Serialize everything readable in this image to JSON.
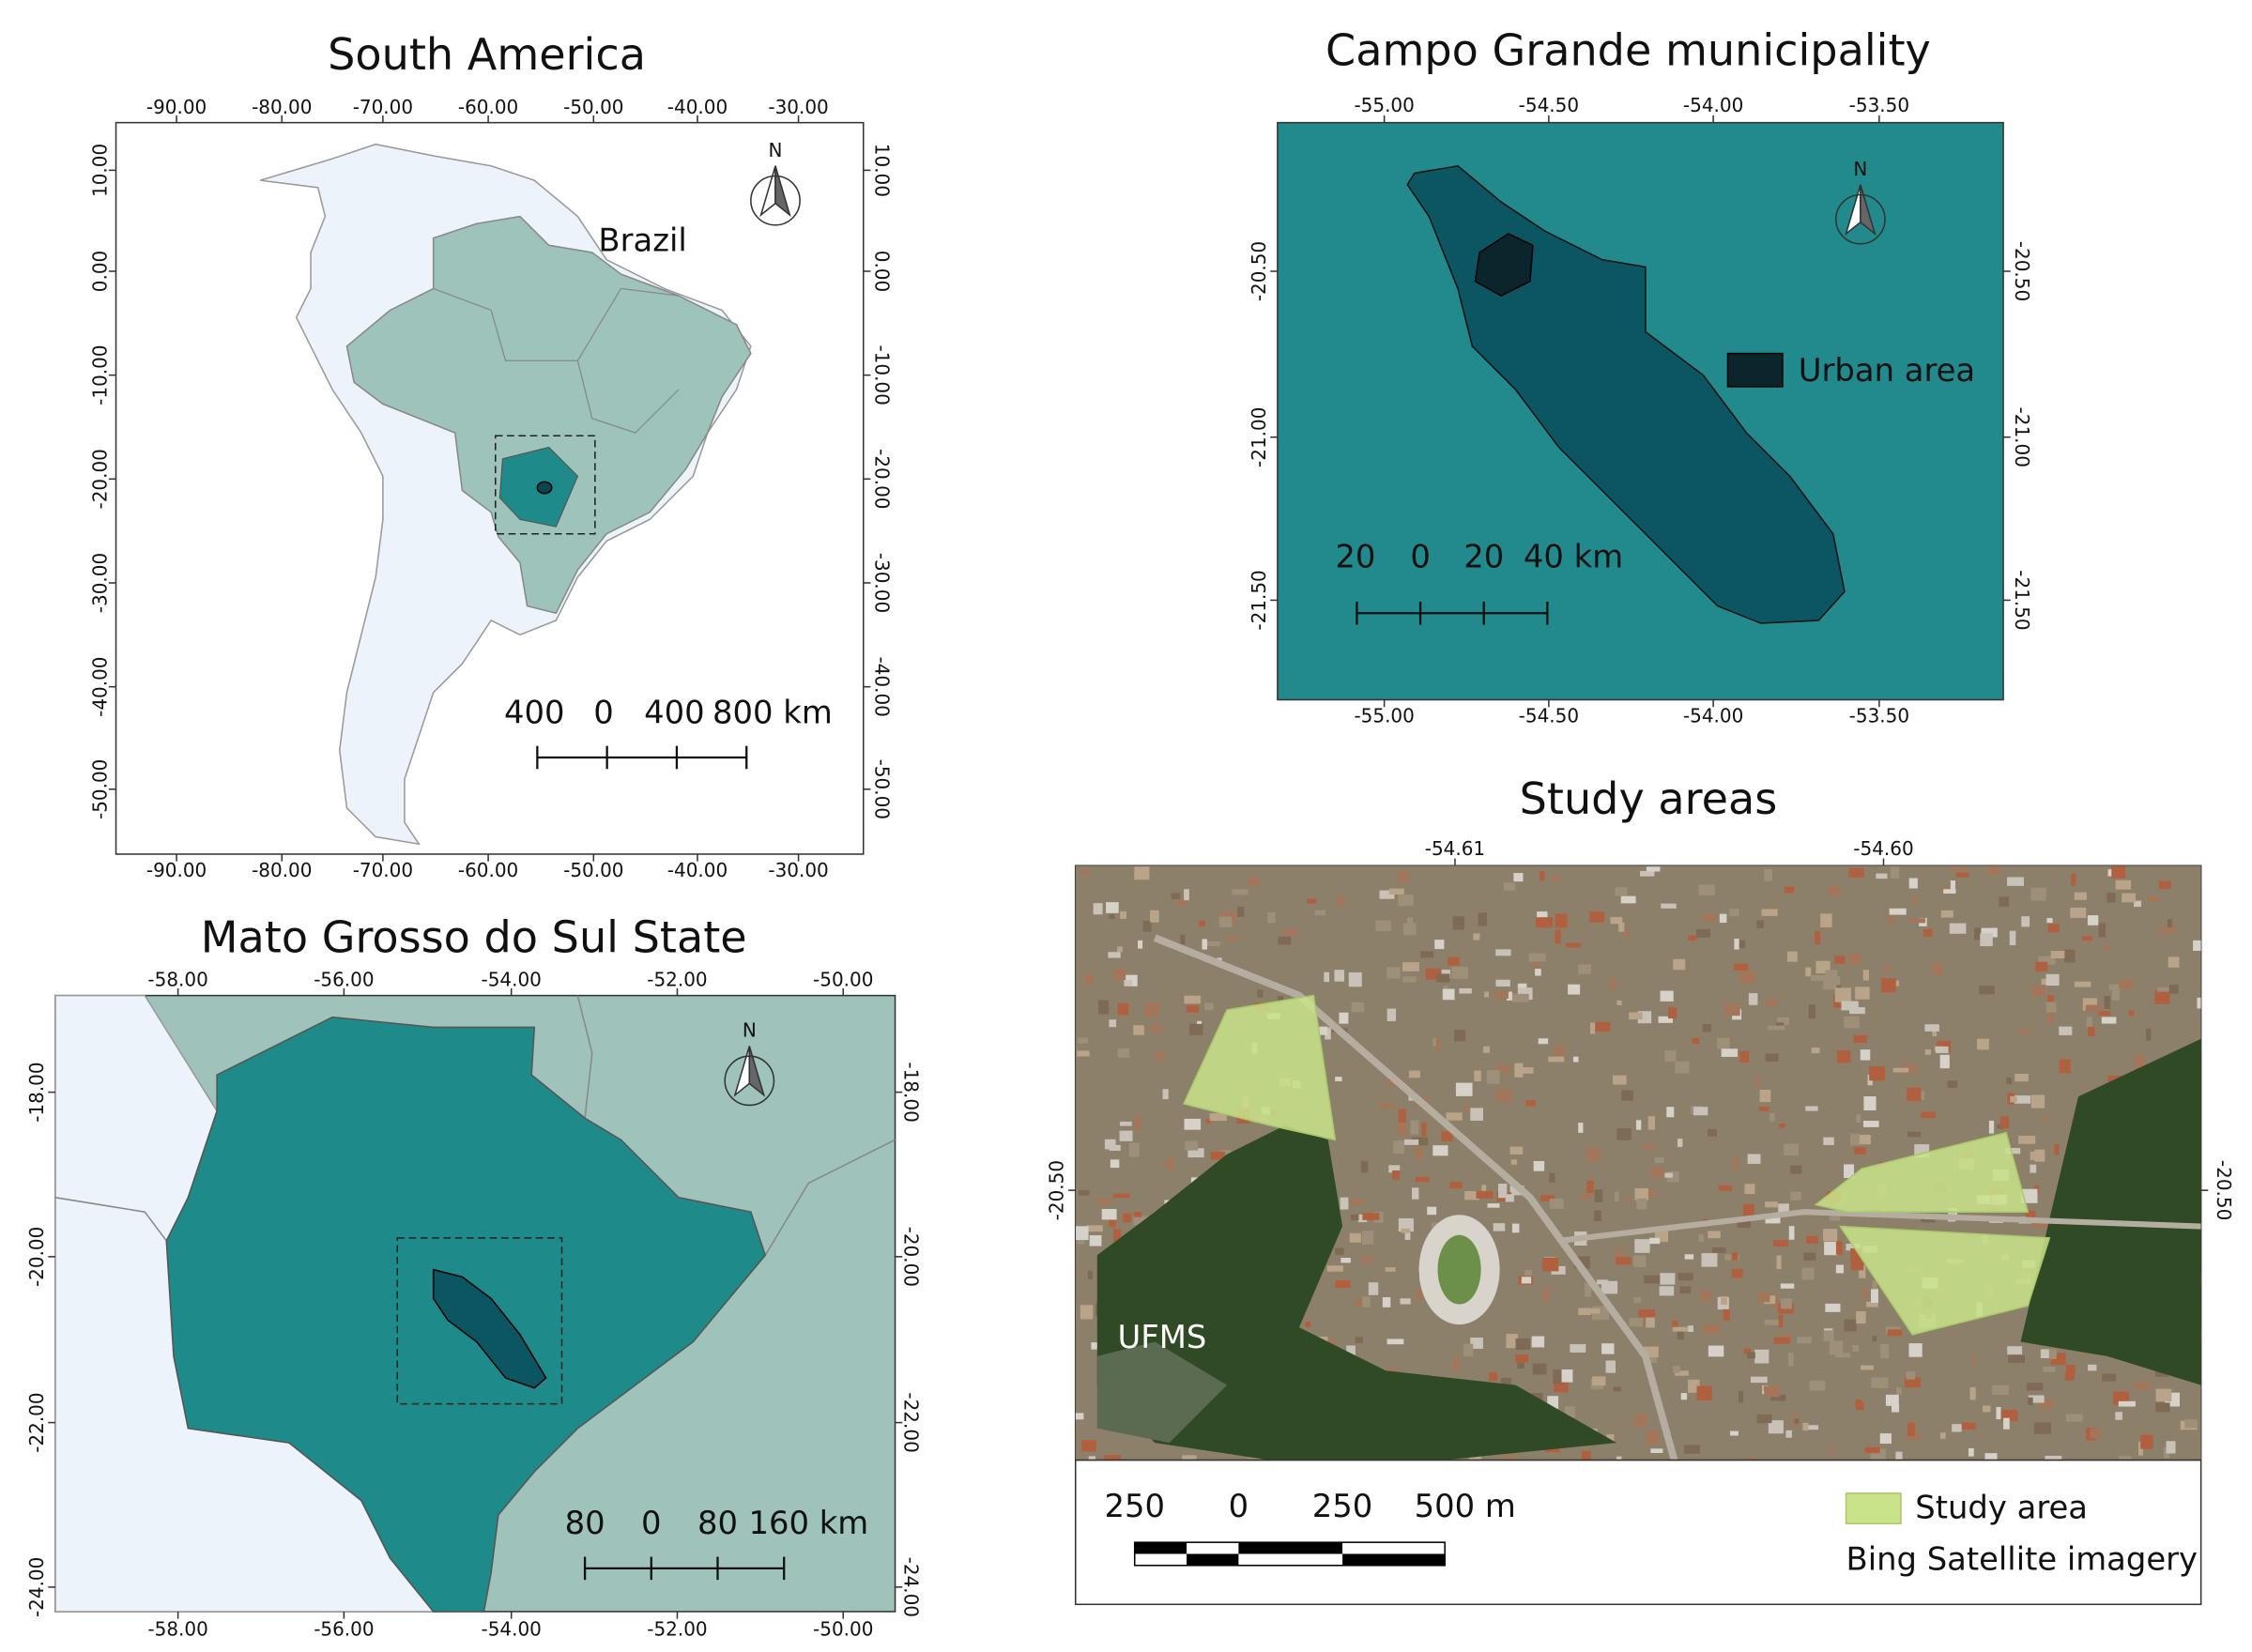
{
  "maps": [
    {
      "title": "South America",
      "x_ticks": [
        "-90.00",
        "-80.00",
        "-70.00",
        "-60.00",
        "-50.00",
        "-40.00",
        "-30.00"
      ],
      "y_ticks": [
        "10.00",
        "0.00",
        "-10.00",
        "-20.00",
        "-30.00",
        "-40.00",
        "-50.00"
      ],
      "north": "N",
      "labels": [
        "Brazil"
      ],
      "scale": [
        "400",
        "0",
        "400",
        "800 km"
      ]
    },
    {
      "title": "Campo Grande municipality",
      "x_ticks": [
        "-55.00",
        "-54.50",
        "-54.00",
        "-53.50"
      ],
      "y_ticks": [
        "-20.50",
        "-21.00",
        "-21.50"
      ],
      "north": "N",
      "legend": [
        "Urban area"
      ],
      "scale": [
        "20",
        "0",
        "20",
        "40 km"
      ]
    },
    {
      "title": "Mato Grosso do Sul State",
      "x_ticks": [
        "-58.00",
        "-56.00",
        "-54.00",
        "-52.00",
        "-50.00"
      ],
      "y_ticks": [
        "-18.00",
        "-20.00",
        "-22.00",
        "-24.00"
      ],
      "north": "N",
      "scale": [
        "80",
        "0",
        "80",
        "160 km"
      ]
    },
    {
      "title": "Study areas",
      "x_ticks": [
        "-54.61",
        "-54.60"
      ],
      "y_ticks": [
        "-20.50"
      ],
      "labels": [
        "UFMS"
      ],
      "scale": [
        "250",
        "0",
        "250",
        "500 m"
      ],
      "legend": [
        "Study area",
        "Bing Satellite imagery"
      ]
    }
  ]
}
